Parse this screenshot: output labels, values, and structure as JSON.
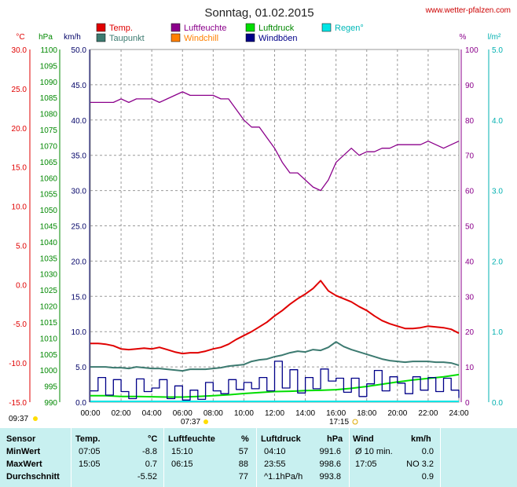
{
  "header": {
    "title": "Sonntag, 01.02.2015",
    "site": "www.wetter-pfalzen.com"
  },
  "legend": [
    {
      "label": "Temp.",
      "color": "#e00000"
    },
    {
      "label": "Luftfeuchte",
      "color": "#8b008b"
    },
    {
      "label": "Luftdruck",
      "color": "#00dd00"
    },
    {
      "label": "Regen°",
      "color": "#00e5e5"
    },
    {
      "label": "Taupunkt",
      "color": "#3c7a70"
    },
    {
      "label": "Windchill",
      "color": "#ff8000"
    },
    {
      "label": "Windböen",
      "color": "#000088"
    }
  ],
  "axis_units": {
    "temp": "°C",
    "pressure": "hPa",
    "wind": "km/h",
    "humidity": "%",
    "rain": "l/m²"
  },
  "sun": {
    "left_label": "09:37",
    "sunrise": "07:37",
    "sunset": "17:15"
  },
  "chart_data": {
    "type": "line",
    "x_ticks": [
      "00:00",
      "02:00",
      "04:00",
      "06:00",
      "08:00",
      "10:00",
      "12:00",
      "14:00",
      "16:00",
      "18:00",
      "20:00",
      "22:00",
      "24:00"
    ],
    "axes": {
      "temp": {
        "range": [
          -15,
          30
        ],
        "ticks": [
          "30.0",
          "25.0",
          "20.0",
          "15.0",
          "10.0",
          "5.0",
          "0.0",
          "-5.0",
          "-10.0",
          "-15.0"
        ]
      },
      "pressure": {
        "range": [
          990,
          1100
        ],
        "ticks": [
          "1100",
          "1095",
          "1090",
          "1085",
          "1080",
          "1075",
          "1070",
          "1065",
          "1060",
          "1055",
          "1050",
          "1045",
          "1040",
          "1035",
          "1030",
          "1025",
          "1020",
          "1015",
          "1010",
          "1005",
          "1000",
          "995",
          "990"
        ]
      },
      "wind": {
        "range": [
          0,
          50
        ],
        "ticks": [
          "50.0",
          "45.0",
          "40.0",
          "35.0",
          "30.0",
          "25.0",
          "20.0",
          "15.0",
          "10.0",
          "5.0",
          "0.0"
        ]
      },
      "humidity": {
        "range": [
          0,
          100
        ],
        "ticks": [
          "100",
          "90",
          "80",
          "70",
          "60",
          "50",
          "40",
          "30",
          "20",
          "10",
          "0"
        ]
      },
      "rain": {
        "range": [
          0,
          5
        ],
        "ticks": [
          "5.0",
          "4.0",
          "3.0",
          "2.0",
          "1.0",
          "0.0"
        ]
      }
    },
    "series": [
      {
        "name": "Luftfeuchte",
        "axis": "humidity",
        "color": "#8b008b",
        "x": [
          0,
          0.5,
          1,
          1.5,
          2,
          2.5,
          3,
          3.5,
          4,
          4.5,
          5,
          5.5,
          6,
          6.5,
          7,
          7.5,
          8,
          8.5,
          9,
          9.5,
          10,
          10.5,
          11,
          11.5,
          12,
          12.5,
          13,
          13.5,
          14,
          14.5,
          15,
          15.5,
          16,
          16.5,
          17,
          17.5,
          18,
          18.5,
          19,
          19.5,
          20,
          20.5,
          21,
          21.5,
          22,
          22.5,
          23,
          23.5,
          24
        ],
        "y": [
          85,
          85,
          85,
          85,
          86,
          85,
          86,
          86,
          86,
          85,
          86,
          87,
          88,
          87,
          87,
          87,
          87,
          86,
          86,
          83,
          80,
          78,
          78,
          75,
          72,
          68,
          65,
          65,
          63,
          61,
          60,
          63,
          68,
          70,
          72,
          70,
          71,
          71,
          72,
          72,
          73,
          73,
          73,
          73,
          74,
          73,
          72,
          73,
          74
        ]
      },
      {
        "name": "Temp.",
        "axis": "temp",
        "color": "#e00000",
        "x": [
          0,
          0.5,
          1,
          1.5,
          2,
          2.5,
          3,
          3.5,
          4,
          4.5,
          5,
          5.5,
          6,
          6.5,
          7,
          7.5,
          8,
          8.5,
          9,
          9.5,
          10,
          10.5,
          11,
          11.5,
          12,
          12.5,
          13,
          13.5,
          14,
          14.5,
          15,
          15.5,
          16,
          16.5,
          17,
          17.5,
          18,
          18.5,
          19,
          19.5,
          20,
          20.5,
          21,
          21.5,
          22,
          22.5,
          23,
          23.5,
          24
        ],
        "y": [
          -7.5,
          -7.5,
          -7.6,
          -7.8,
          -8.2,
          -8.3,
          -8.2,
          -8.1,
          -8.2,
          -8.0,
          -8.3,
          -8.6,
          -8.8,
          -8.7,
          -8.7,
          -8.5,
          -8.2,
          -8.0,
          -7.6,
          -7.0,
          -6.5,
          -6.0,
          -5.4,
          -4.8,
          -4.0,
          -3.3,
          -2.5,
          -1.8,
          -1.2,
          -0.5,
          0.5,
          -0.8,
          -1.4,
          -1.8,
          -2.2,
          -2.8,
          -3.3,
          -4.0,
          -4.6,
          -5.0,
          -5.3,
          -5.6,
          -5.6,
          -5.5,
          -5.3,
          -5.4,
          -5.5,
          -5.7,
          -6.2
        ]
      },
      {
        "name": "Taupunkt",
        "axis": "temp",
        "color": "#3c7a70",
        "x": [
          0,
          0.5,
          1,
          1.5,
          2,
          2.5,
          3,
          3.5,
          4,
          4.5,
          5,
          5.5,
          6,
          6.5,
          7,
          7.5,
          8,
          8.5,
          9,
          9.5,
          10,
          10.5,
          11,
          11.5,
          12,
          12.5,
          13,
          13.5,
          14,
          14.5,
          15,
          15.5,
          16,
          16.5,
          17,
          17.5,
          18,
          18.5,
          19,
          19.5,
          20,
          20.5,
          21,
          21.5,
          22,
          22.5,
          23,
          23.5,
          24
        ],
        "y": [
          -10.5,
          -10.5,
          -10.5,
          -10.6,
          -10.6,
          -10.7,
          -10.5,
          -10.6,
          -10.7,
          -10.7,
          -10.8,
          -10.9,
          -11.0,
          -10.8,
          -10.8,
          -10.8,
          -10.7,
          -10.6,
          -10.4,
          -10.3,
          -10.2,
          -9.8,
          -9.6,
          -9.5,
          -9.2,
          -9.0,
          -8.7,
          -8.5,
          -8.6,
          -8.3,
          -8.4,
          -8.0,
          -7.3,
          -7.9,
          -8.3,
          -8.6,
          -8.9,
          -9.2,
          -9.5,
          -9.7,
          -9.8,
          -9.9,
          -9.8,
          -9.8,
          -9.8,
          -9.9,
          -9.9,
          -10.0,
          -10.3
        ]
      },
      {
        "name": "Luftdruck",
        "axis": "pressure",
        "color": "#00dd00",
        "x": [
          0,
          1,
          2,
          3,
          4,
          5,
          6,
          7,
          8,
          9,
          10,
          11,
          12,
          13,
          14,
          15,
          16,
          17,
          18,
          19,
          20,
          21,
          22,
          23,
          24
        ],
        "y": [
          992.0,
          992.0,
          991.8,
          991.8,
          991.7,
          991.6,
          991.6,
          991.8,
          992.0,
          992.3,
          992.7,
          993.0,
          993.3,
          993.4,
          993.6,
          993.7,
          993.9,
          994.3,
          994.9,
          995.6,
          996.3,
          996.9,
          997.4,
          997.9,
          998.6
        ]
      },
      {
        "name": "Windböen",
        "axis": "wind",
        "color": "#000088",
        "x": [
          0,
          0.5,
          1,
          1.5,
          2,
          2.5,
          3,
          3.5,
          4,
          4.5,
          5,
          5.5,
          6,
          6.5,
          7,
          7.5,
          8,
          8.5,
          9,
          9.5,
          10,
          10.5,
          11,
          11.5,
          12,
          12.5,
          13,
          13.5,
          14,
          14.5,
          15,
          15.5,
          16,
          16.5,
          17,
          17.5,
          18,
          18.5,
          19,
          19.5,
          20,
          20.5,
          21,
          21.5,
          22,
          22.5,
          23,
          23.5,
          24
        ],
        "y": [
          1.6,
          3.5,
          1.0,
          3.2,
          1.5,
          0.5,
          3.3,
          1.5,
          2.0,
          3.2,
          0.5,
          2.3,
          0.3,
          1.7,
          0.4,
          2.8,
          1.6,
          1.2,
          3.2,
          1.8,
          2.8,
          1.9,
          3.5,
          1.6,
          5.8,
          2.0,
          4.6,
          1.3,
          3.5,
          1.9,
          4.7,
          3.0,
          3.4,
          1.4,
          3.4,
          0.8,
          2.6,
          4.5,
          1.6,
          3.6,
          2.7,
          1.2,
          3.6,
          1.7,
          3.5,
          1.5,
          3.4,
          1.7,
          0.6
        ]
      }
    ]
  },
  "stats": {
    "headers": {
      "sensor": "Sensor",
      "temp": "Temp.",
      "temp_unit": "°C",
      "hum": "Luftfeuchte",
      "hum_unit": "%",
      "press": "Luftdruck",
      "press_unit": "hPa",
      "wind": "Wind",
      "wind_unit": "km/h"
    },
    "rows": [
      {
        "label": "MinWert",
        "t_time": "07:05",
        "t_val": "-8.8",
        "h_time": "15:10",
        "h_val": "57",
        "p_time": "04:10",
        "p_val": "991.6",
        "w_time": "Ø 10 min.",
        "w_val": "0.0"
      },
      {
        "label": "MaxWert",
        "t_time": "15:05",
        "t_val": "0.7",
        "h_time": "06:15",
        "h_val": "88",
        "p_time": "23:55",
        "p_val": "998.6",
        "w_time": "17:05",
        "w_val": "NO 3.2"
      },
      {
        "label": "Durchschnitt",
        "t_time": "",
        "t_val": "-5.52",
        "h_time": "",
        "h_val": "77",
        "p_time": "^1.1hPa/h",
        "p_val": "993.8",
        "w_time": "",
        "w_val": "0.9"
      }
    ]
  }
}
